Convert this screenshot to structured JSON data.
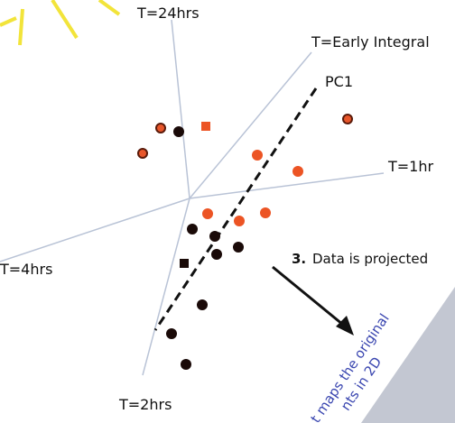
{
  "axes": {
    "t24": "T=24hrs",
    "early": "T=Early Integral",
    "t1": "T=1hr",
    "t4": "T=4hrs",
    "t2": "T=2hrs"
  },
  "pc1": "PC1",
  "step": {
    "number": "3.",
    "text": "Data is projected"
  },
  "note": {
    "line1": "t maps the original",
    "line2": "nts in 2D"
  }
}
